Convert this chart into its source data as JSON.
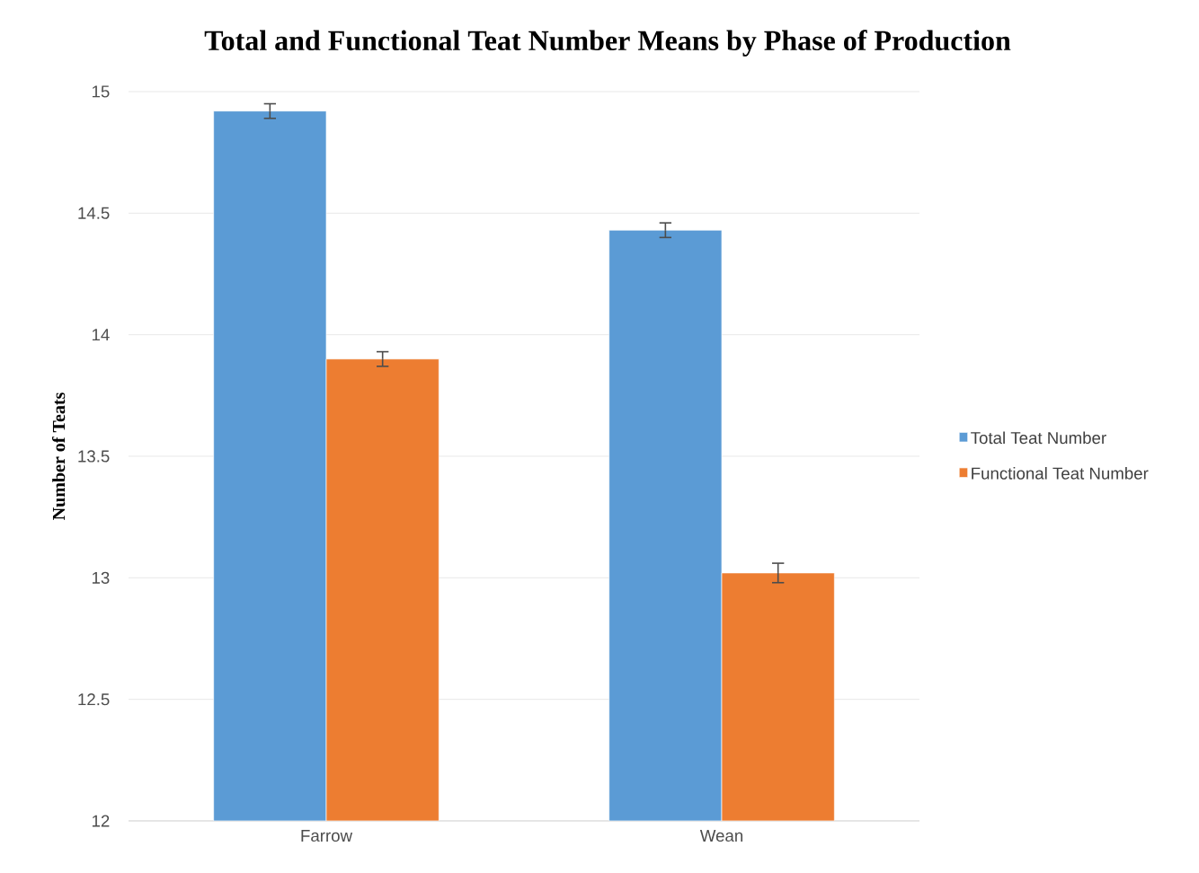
{
  "chart_data": {
    "type": "bar",
    "title": "Total and Functional Teat Number Means by Phase of Production",
    "ylabel": "Number of Teats",
    "categories": [
      "Farrow",
      "Wean"
    ],
    "series": [
      {
        "name": "Total Teat Number",
        "color": "#5b9bd5",
        "values": [
          14.92,
          14.43
        ],
        "errors": [
          0.03,
          0.03
        ]
      },
      {
        "name": "Functional Teat Number",
        "color": "#ed7d31",
        "values": [
          13.9,
          13.02
        ],
        "errors": [
          0.03,
          0.04
        ]
      }
    ],
    "ylim": [
      12,
      15
    ],
    "yticks": [
      12,
      12.5,
      13,
      13.5,
      14,
      14.5,
      15
    ],
    "grid": "y",
    "legend": "right"
  }
}
